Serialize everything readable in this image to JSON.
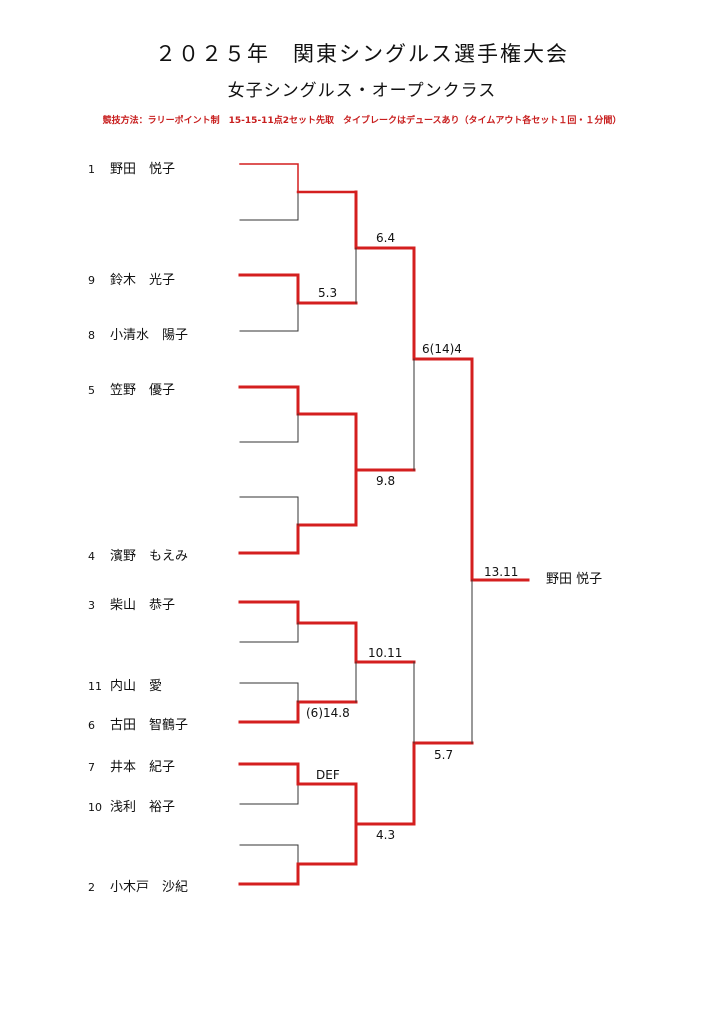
{
  "header": {
    "title": "２０２５年　関東シングルス選手権大会",
    "subtitle": "女子シングルス・オープンクラス",
    "rules": "競技方法：ラリーポイント制　15-15-11点2セット先取　タイブレークはデュースあり（タイムアウト各セット１回・１分間）"
  },
  "players": [
    {
      "seed": "1",
      "name": "野田　悦子"
    },
    {
      "seed": "9",
      "name": "鈴木　光子"
    },
    {
      "seed": "8",
      "name": "小清水　陽子"
    },
    {
      "seed": "5",
      "name": "笠野　優子"
    },
    {
      "seed": "4",
      "name": "濱野　もえみ"
    },
    {
      "seed": "3",
      "name": "柴山　恭子"
    },
    {
      "seed": "11",
      "name": "内山　愛"
    },
    {
      "seed": "6",
      "name": "古田　智鶴子"
    },
    {
      "seed": "7",
      "name": "井本　紀子"
    },
    {
      "seed": "10",
      "name": "浅利　裕子"
    },
    {
      "seed": "2",
      "name": "小木戸　沙紀"
    }
  ],
  "scores": {
    "r1_b": "5.3",
    "r2_a": "6.4",
    "r2_b": "9.8",
    "r3_a": "6(14)4",
    "final": "13.11",
    "r1_d": "(6)14.8",
    "r2_c": "10.11",
    "r1_e": "DEF",
    "r2_d": "4.3",
    "r3_b": "5.7"
  },
  "champion": "野田 悦子",
  "colors": {
    "win": "#d41f1f",
    "line": "#333333"
  }
}
